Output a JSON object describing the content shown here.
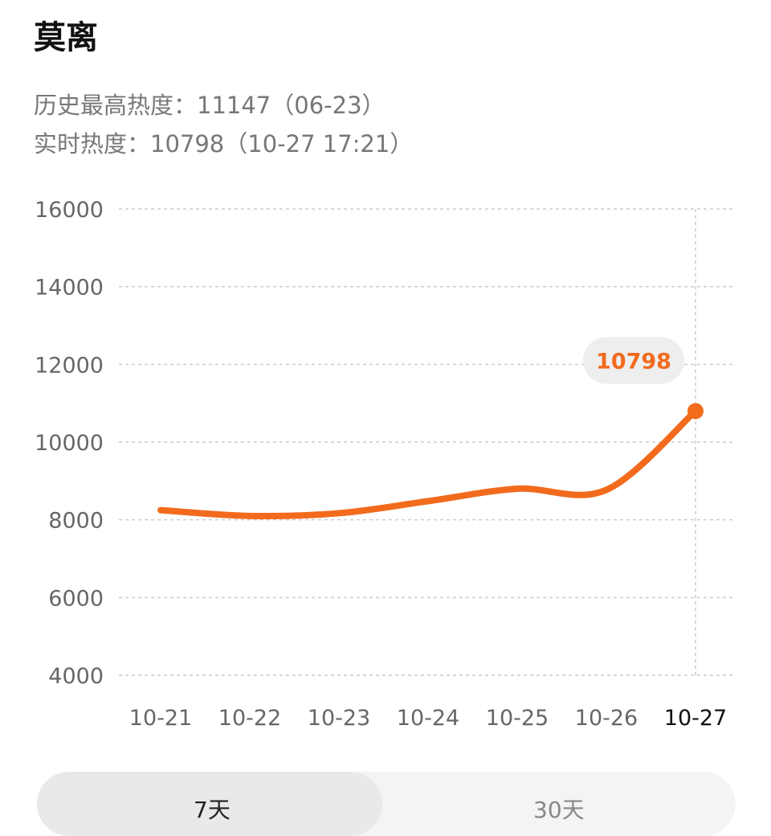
{
  "title": "莫离",
  "history_high": "历史最高热度：11147（06-23）",
  "realtime": "实时热度：10798（10-27 17:21）",
  "chart_data": {
    "type": "line",
    "categories": [
      "10-21",
      "10-22",
      "10-23",
      "10-24",
      "10-25",
      "10-26",
      "10-27"
    ],
    "values": [
      8250,
      8100,
      8170,
      8480,
      8800,
      8770,
      10798
    ],
    "yticks": [
      "16000",
      "14000",
      "12000",
      "10000",
      "8000",
      "6000",
      "4000"
    ],
    "ylim": [
      4000,
      16000
    ],
    "grid": true,
    "highlight_label": "10798",
    "color": "#f26b1d"
  },
  "tabs": [
    {
      "label": "7天",
      "active": true
    },
    {
      "label": "30天",
      "active": false
    }
  ]
}
